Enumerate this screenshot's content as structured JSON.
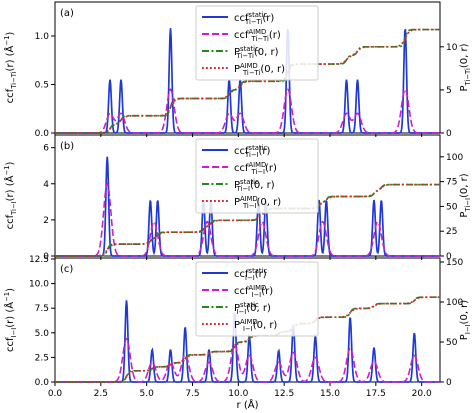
{
  "colors": {
    "ccf_static": "#2039d6",
    "ccf_aimd": "#cc1fcc",
    "p_static": "#1f8a1f",
    "p_aimd": "#d6272f"
  },
  "chart_data": [
    {
      "type": "line",
      "panel_label": "(a)",
      "ylabel_left": "ccf_{Ti−Ti}(r) (Å^{−1})",
      "ylabel_right": "P_{Ti−Ti}(0, r)",
      "xlim": [
        0,
        21
      ],
      "ylim_left": [
        0,
        1.35
      ],
      "ylim_right": [
        0,
        15.2
      ],
      "xticks": [
        0.0,
        2.5,
        5.0,
        7.5,
        10.0,
        12.5,
        15.0,
        17.5,
        20.0
      ],
      "yticks_left": [
        0.0,
        0.5,
        1.0
      ],
      "yticks_right": [
        0,
        5,
        10
      ],
      "legend": [
        "ccf^static_{Ti−Ti}(r)",
        "ccf^AIMD_{Ti−Ti}(r)",
        "P^static_{Ti−Ti}(0, r)",
        "P^AIMD_{Ti−Ti}(0, r)"
      ],
      "legend_position": "top-center",
      "series": [
        {
          "name": "ccf^static_{Ti−Ti}(r)",
          "role": "ccf_static",
          "peaks": [
            [
              3.0,
              0.55
            ],
            [
              3.6,
              0.55
            ],
            [
              6.3,
              1.08
            ],
            [
              9.5,
              0.55
            ],
            [
              10.1,
              0.55
            ],
            [
              12.7,
              1.08
            ],
            [
              15.9,
              0.55
            ],
            [
              16.5,
              0.55
            ],
            [
              19.1,
              1.08
            ]
          ]
        },
        {
          "name": "ccf^AIMD_{Ti−Ti}(r)",
          "role": "ccf_aimd",
          "peaks": [
            [
              3.0,
              0.2
            ],
            [
              3.6,
              0.2
            ],
            [
              6.3,
              0.45
            ],
            [
              9.5,
              0.2
            ],
            [
              10.1,
              0.2
            ],
            [
              12.7,
              0.45
            ],
            [
              15.9,
              0.2
            ],
            [
              16.5,
              0.2
            ],
            [
              19.1,
              0.45
            ]
          ]
        },
        {
          "name": "P^static_{Ti−Ti}(0, r)",
          "role": "p_static",
          "steps": [
            [
              3.0,
              1
            ],
            [
              3.6,
              2
            ],
            [
              6.3,
              4
            ],
            [
              9.5,
              5
            ],
            [
              10.1,
              6
            ],
            [
              12.7,
              8
            ],
            [
              15.9,
              9
            ],
            [
              16.5,
              10
            ],
            [
              19.1,
              12
            ]
          ]
        },
        {
          "name": "P^AIMD_{Ti−Ti}(0, r)",
          "role": "p_aimd",
          "steps": [
            [
              3.0,
              1
            ],
            [
              3.6,
              2
            ],
            [
              6.3,
              4
            ],
            [
              9.5,
              5
            ],
            [
              10.1,
              6
            ],
            [
              12.7,
              8
            ],
            [
              15.9,
              9
            ],
            [
              16.5,
              10
            ],
            [
              19.1,
              12
            ]
          ]
        }
      ]
    },
    {
      "type": "line",
      "panel_label": "(b)",
      "ylabel_left": "ccf_{Ti−I}(r) (Å^{−1})",
      "ylabel_right": "P_{Ti−I}(0, r)",
      "xlim": [
        0,
        21
      ],
      "ylim_left": [
        0,
        6.7
      ],
      "ylim_right": [
        0,
        122
      ],
      "xticks": [
        0.0,
        2.5,
        5.0,
        7.5,
        10.0,
        12.5,
        15.0,
        17.5,
        20.0
      ],
      "yticks_left": [
        0,
        2,
        4,
        6
      ],
      "yticks_right": [
        0,
        25,
        50,
        75,
        100
      ],
      "legend": [
        "ccf^static_{Ti−I}(r)",
        "ccf^AIMD_{Ti−I}(r)",
        "P^static_{Ti−I}(0, r)",
        "P^AIMD_{Ti−I}(0, r)"
      ],
      "legend_position": "top-center",
      "series": [
        {
          "name": "ccf^static_{Ti−I}(r)",
          "role": "ccf_static",
          "peaks": [
            [
              2.85,
              5.5
            ],
            [
              5.2,
              3.1
            ],
            [
              5.6,
              3.1
            ],
            [
              8.1,
              3.1
            ],
            [
              8.5,
              3.1
            ],
            [
              11.1,
              3.1
            ],
            [
              11.5,
              3.1
            ],
            [
              14.4,
              3.1
            ],
            [
              14.8,
              3.1
            ],
            [
              17.4,
              3.1
            ],
            [
              17.8,
              3.1
            ]
          ]
        },
        {
          "name": "ccf^AIMD_{Ti−I}(r)",
          "role": "ccf_aimd",
          "peaks": [
            [
              2.85,
              4.0
            ],
            [
              5.4,
              1.9
            ],
            [
              8.3,
              1.9
            ],
            [
              11.3,
              1.9
            ],
            [
              14.6,
              1.9
            ],
            [
              17.6,
              1.9
            ]
          ]
        },
        {
          "name": "P^static_{Ti−I}(0, r)",
          "role": "p_static",
          "steps": [
            [
              2.85,
              12
            ],
            [
              5.2,
              18
            ],
            [
              5.6,
              24
            ],
            [
              8.1,
              30
            ],
            [
              8.5,
              36
            ],
            [
              11.1,
              42
            ],
            [
              11.5,
              48
            ],
            [
              14.4,
              54
            ],
            [
              14.8,
              60
            ],
            [
              17.4,
              66
            ],
            [
              17.8,
              72
            ]
          ]
        },
        {
          "name": "P^AIMD_{Ti−I}(0, r)",
          "role": "p_aimd",
          "steps": [
            [
              2.85,
              12
            ],
            [
              5.2,
              18
            ],
            [
              5.6,
              24
            ],
            [
              8.1,
              30
            ],
            [
              8.5,
              36
            ],
            [
              11.1,
              42
            ],
            [
              11.5,
              48
            ],
            [
              14.4,
              54
            ],
            [
              14.8,
              60
            ],
            [
              17.4,
              66
            ],
            [
              17.8,
              72
            ]
          ]
        }
      ]
    },
    {
      "type": "line",
      "panel_label": "(c)",
      "ylabel_left": "ccf_{I−I}(r) (Å^{−1})",
      "ylabel_right": "P_{I−I}(0, r)",
      "xlabel": "r (Å)",
      "xlim": [
        0,
        21
      ],
      "ylim_left": [
        0,
        12.6
      ],
      "ylim_right": [
        0,
        155
      ],
      "xticks": [
        0.0,
        2.5,
        5.0,
        7.5,
        10.0,
        12.5,
        15.0,
        17.5,
        20.0
      ],
      "xtick_labels": [
        "0.0",
        "2.5",
        "5.0",
        "7.5",
        "10.0",
        "12.5",
        "15.0",
        "17.5",
        "20.0"
      ],
      "yticks_left": [
        0.0,
        2.5,
        5.0,
        7.5,
        10.0,
        12.5
      ],
      "yticks_right": [
        0,
        50,
        100,
        150
      ],
      "legend": [
        "ccf^static_{I−I}(r)",
        "ccf^AIMD_{I−I}(r)",
        "P^static_{I−I}(0, r)",
        "P^AIMD_{I−I}(0, r)"
      ],
      "legend_position": "top-center",
      "series": [
        {
          "name": "ccf^static_{I−I}(r)",
          "role": "ccf_static",
          "peaks": [
            [
              3.9,
              8.3
            ],
            [
              5.3,
              3.3
            ],
            [
              6.3,
              3.3
            ],
            [
              7.1,
              5.6
            ],
            [
              8.4,
              3.3
            ],
            [
              9.8,
              7.1
            ],
            [
              10.6,
              4.7
            ],
            [
              12.2,
              3.2
            ],
            [
              13.0,
              5.8
            ],
            [
              14.2,
              4.7
            ],
            [
              16.1,
              6.6
            ],
            [
              17.4,
              3.5
            ],
            [
              19.6,
              5.0
            ]
          ]
        },
        {
          "name": "ccf^AIMD_{I−I}(r)",
          "role": "ccf_aimd",
          "peaks": [
            [
              3.9,
              4.4
            ],
            [
              5.3,
              2.0
            ],
            [
              6.3,
              2.0
            ],
            [
              7.1,
              2.8
            ],
            [
              8.4,
              2.0
            ],
            [
              9.8,
              3.8
            ],
            [
              10.6,
              2.7
            ],
            [
              12.2,
              2.0
            ],
            [
              13.0,
              3.0
            ],
            [
              14.2,
              2.5
            ],
            [
              16.1,
              3.4
            ],
            [
              17.4,
              2.1
            ],
            [
              19.6,
              2.7
            ]
          ]
        },
        {
          "name": "P^static_{I−I}(0, r)",
          "role": "p_static",
          "steps": [
            [
              3.9,
              14
            ],
            [
              5.3,
              19
            ],
            [
              6.3,
              24
            ],
            [
              7.1,
              34
            ],
            [
              8.4,
              38
            ],
            [
              9.8,
              50
            ],
            [
              10.6,
              58
            ],
            [
              12.2,
              63
            ],
            [
              13.0,
              73
            ],
            [
              14.2,
              81
            ],
            [
              16.1,
              92
            ],
            [
              17.4,
              98
            ],
            [
              19.6,
              106
            ]
          ]
        },
        {
          "name": "P^AIMD_{I−I}(0, r)",
          "role": "p_aimd",
          "steps": [
            [
              3.9,
              14
            ],
            [
              5.3,
              19
            ],
            [
              6.3,
              24
            ],
            [
              7.1,
              34
            ],
            [
              8.4,
              38
            ],
            [
              9.8,
              50
            ],
            [
              10.6,
              58
            ],
            [
              12.2,
              63
            ],
            [
              13.0,
              73
            ],
            [
              14.2,
              81
            ],
            [
              16.1,
              92
            ],
            [
              17.4,
              98
            ],
            [
              19.6,
              106
            ]
          ]
        }
      ]
    }
  ]
}
